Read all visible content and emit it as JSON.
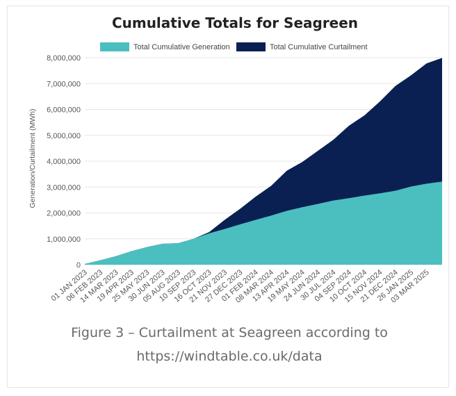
{
  "caption": {
    "line1": "Figure 3 – Curtailment at Seagreen according to",
    "line2": "https://windtable.co.uk/data"
  },
  "chart_data": {
    "type": "area",
    "stacked": true,
    "title": "Cumulative Totals for Seagreen",
    "xlabel": "",
    "ylabel": "Generation/Curtailment (MWh)",
    "ylim": [
      0,
      8000000
    ],
    "yticks": [
      0,
      1000000,
      2000000,
      3000000,
      4000000,
      5000000,
      6000000,
      7000000,
      8000000
    ],
    "ytick_labels": [
      "0",
      "1,000,000",
      "2,000,000",
      "3,000,000",
      "4,000,000",
      "5,000,000",
      "6,000,000",
      "7,000,000",
      "8,000,000"
    ],
    "xtick_labels": [
      "01 JAN 2023",
      "06 FEB 2023",
      "14 MAR 2023",
      "19 APR 2023",
      "25 MAY 2023",
      "30 JUN 2023",
      "05 AUG 2023",
      "10 SEP 2023",
      "16 OCT 2023",
      "21 NOV 2023",
      "27 DEC 2023",
      "01 FEB 2024",
      "08 MAR 2024",
      "13 APR 2024",
      "19 MAY 2024",
      "24 JUN 2024",
      "30 JUL 2024",
      "04 SEP 2024",
      "10 OCT 2024",
      "15 NOV 2024",
      "21 DEC 2024",
      "26 JAN 2025",
      "03 MAR 2025"
    ],
    "grid": true,
    "legend": "top-center",
    "colors": {
      "generation": "#4bbfbf",
      "curtailment": "#0a2052",
      "grid": "#e6e6e6",
      "axis": "#555555"
    },
    "x": [
      "2023-01-01",
      "2023-02-06",
      "2023-03-14",
      "2023-04-19",
      "2023-05-25",
      "2023-06-30",
      "2023-08-05",
      "2023-09-10",
      "2023-10-16",
      "2023-11-21",
      "2023-12-27",
      "2024-02-01",
      "2024-03-08",
      "2024-04-13",
      "2024-05-19",
      "2024-06-24",
      "2024-07-30",
      "2024-09-04",
      "2024-10-10",
      "2024-11-15",
      "2024-12-21",
      "2025-01-26",
      "2025-03-03",
      "2025-04-08"
    ],
    "series": [
      {
        "name": "Total Cumulative Generation",
        "values": [
          30000,
          170000,
          330000,
          520000,
          680000,
          810000,
          830000,
          1000000,
          1210000,
          1380000,
          1560000,
          1730000,
          1900000,
          2080000,
          2220000,
          2350000,
          2480000,
          2570000,
          2670000,
          2760000,
          2860000,
          3020000,
          3130000,
          3210000
        ]
      },
      {
        "name": "Total Cumulative Curtailment",
        "values": [
          0,
          0,
          0,
          0,
          0,
          0,
          0,
          0,
          50000,
          350000,
          600000,
          900000,
          1150000,
          1550000,
          1750000,
          2050000,
          2350000,
          2800000,
          3100000,
          3550000,
          4050000,
          4300000,
          4650000,
          4780000
        ]
      }
    ]
  }
}
